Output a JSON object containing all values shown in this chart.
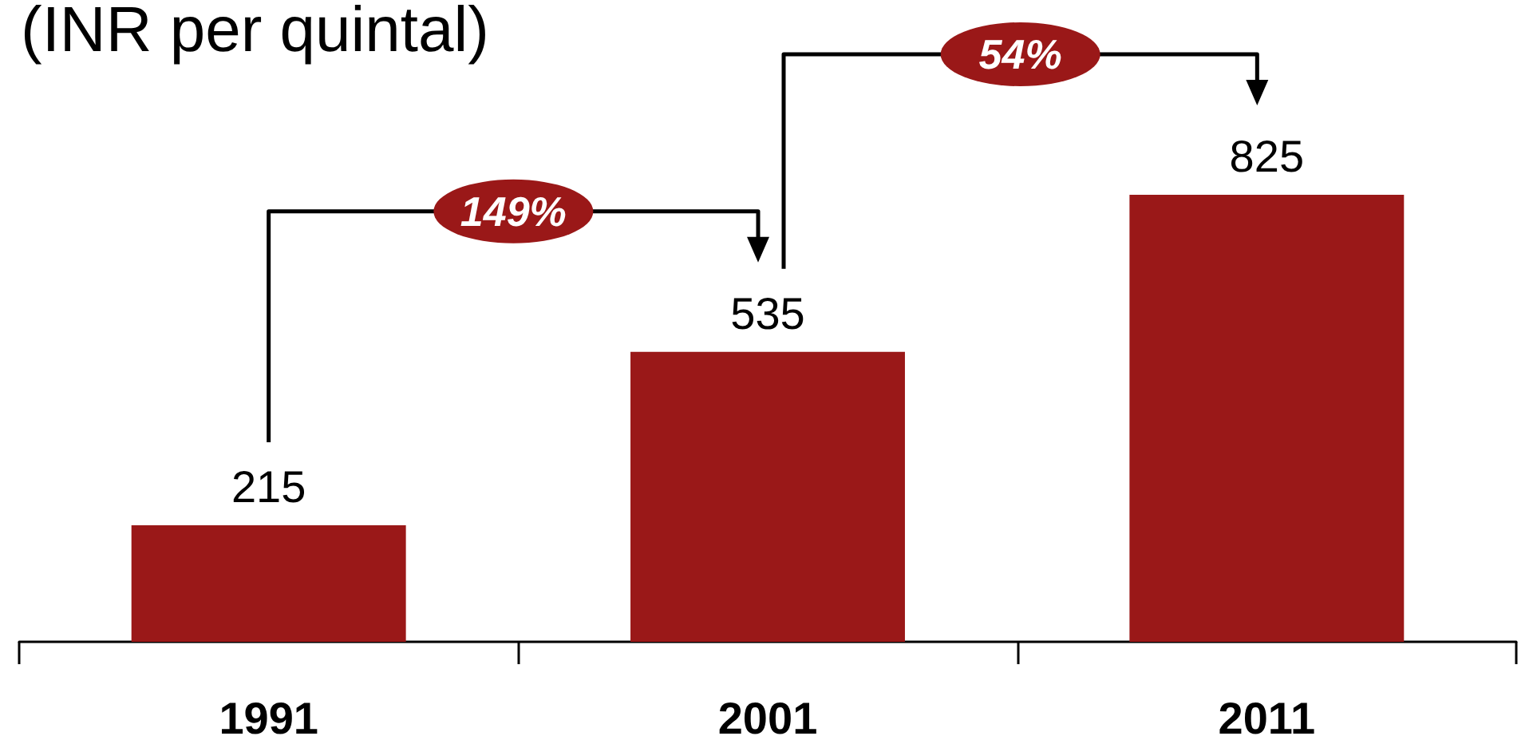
{
  "chart_data": {
    "type": "bar",
    "title": "(INR per quintal)",
    "categories": [
      "1991",
      "2001",
      "2011"
    ],
    "values": [
      215,
      535,
      825
    ],
    "color": "#9a1818",
    "data_labels": true,
    "annotations": [
      "149%",
      "54%"
    ]
  }
}
